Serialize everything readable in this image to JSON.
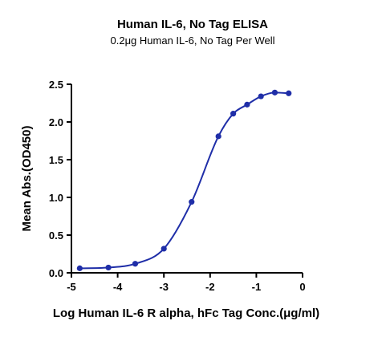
{
  "chart_data": {
    "type": "line",
    "title": "Human IL-6, No Tag ELISA",
    "subtitle": "0.2μg Human IL-6, No Tag Per Well",
    "xlabel": "Log Human IL-6 R alpha, hFc Tag Conc.(μg/ml)",
    "ylabel": "Mean Abs.(OD450)",
    "xlim": [
      -5,
      0
    ],
    "ylim": [
      0,
      2.5
    ],
    "xticks": [
      "-5",
      "-4",
      "-3",
      "-2",
      "-1",
      "0"
    ],
    "yticks": [
      "0.0",
      "0.5",
      "1.0",
      "1.5",
      "2.0",
      "2.5"
    ],
    "grid": false,
    "color": "#1f2ea8",
    "series": [
      {
        "x": [
          -4.82,
          -4.2,
          -3.62,
          -3.0,
          -2.4,
          -1.82,
          -1.5,
          -1.2,
          -0.9,
          -0.6,
          -0.3
        ],
        "y": [
          0.06,
          0.07,
          0.12,
          0.32,
          0.94,
          1.81,
          2.11,
          2.23,
          2.34,
          2.39,
          2.38
        ]
      }
    ]
  }
}
